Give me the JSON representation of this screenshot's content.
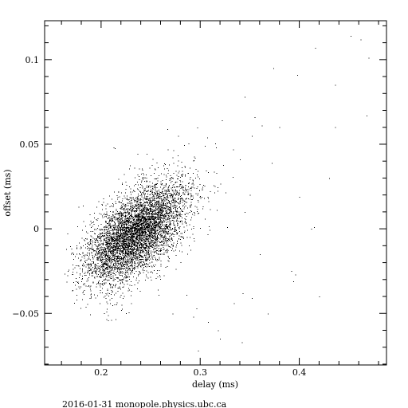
{
  "chart_data": {
    "type": "scatter",
    "title": "",
    "xlabel": "delay (ms)",
    "ylabel": "offset (ms)",
    "xlim": [
      0.143,
      0.488
    ],
    "ylim": [
      -0.0805,
      0.123
    ],
    "x_major_ticks": [
      0.2,
      0.3,
      0.4
    ],
    "x_tick_labels": [
      "0.2",
      "0.3",
      "0.4"
    ],
    "x_minor_step": 0.02,
    "y_major_ticks": [
      -0.05,
      0,
      0.05,
      0.1
    ],
    "y_tick_labels": [
      "−0.05",
      "0",
      "0.05",
      "0.1"
    ],
    "y_minor_step": 0.01,
    "grid": false,
    "point_color": "#000000",
    "point_cloud": {
      "core_center": [
        0.235,
        -0.002
      ],
      "trend_slope": 0.35,
      "core_count": 5200,
      "tail_count": 650,
      "outlier_count": 45
    },
    "points": [
      [
        0.47,
        0.101
      ],
      [
        0.462,
        0.112
      ],
      [
        0.452,
        0.114
      ],
      [
        0.436,
        0.085
      ],
      [
        0.416,
        0.107
      ],
      [
        0.398,
        0.091
      ],
      [
        0.374,
        0.095
      ],
      [
        0.372,
        0.039
      ],
      [
        0.345,
        0.078
      ],
      [
        0.355,
        0.066
      ],
      [
        0.333,
        0.047
      ],
      [
        0.352,
        0.055
      ],
      [
        0.362,
        0.061
      ],
      [
        0.322,
        0.064
      ],
      [
        0.316,
        0.048
      ],
      [
        0.436,
        0.06
      ],
      [
        0.468,
        0.067
      ],
      [
        0.34,
        0.041
      ],
      [
        0.35,
        0.02
      ],
      [
        0.4,
        0.019
      ],
      [
        0.412,
        0.0
      ],
      [
        0.415,
        0.001
      ],
      [
        0.396,
        -0.027
      ],
      [
        0.392,
        -0.025
      ],
      [
        0.394,
        -0.031
      ],
      [
        0.343,
        -0.038
      ],
      [
        0.368,
        -0.05
      ],
      [
        0.352,
        -0.041
      ],
      [
        0.334,
        -0.044
      ],
      [
        0.296,
        -0.047
      ],
      [
        0.293,
        -0.052
      ],
      [
        0.286,
        -0.039
      ],
      [
        0.318,
        -0.06
      ],
      [
        0.32,
        -0.065
      ],
      [
        0.342,
        -0.067
      ],
      [
        0.298,
        -0.072
      ],
      [
        0.21,
        -0.054
      ],
      [
        0.258,
        -0.039
      ],
      [
        0.345,
        0.01
      ],
      [
        0.38,
        0.06
      ],
      [
        0.36,
        -0.015
      ],
      [
        0.308,
        -0.055
      ],
      [
        0.272,
        -0.05
      ],
      [
        0.42,
        -0.04
      ],
      [
        0.43,
        0.03
      ]
    ]
  },
  "footer": {
    "text": "2016-01-31 monopole.physics.ubc.ca"
  }
}
